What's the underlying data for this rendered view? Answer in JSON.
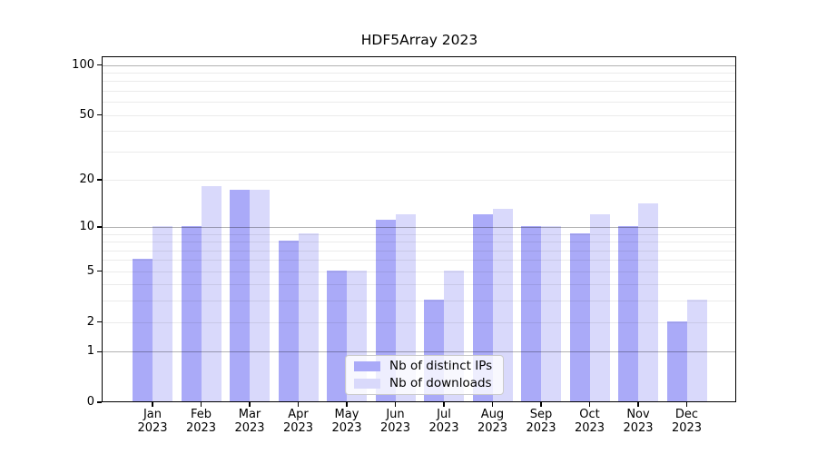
{
  "chart_data": {
    "type": "bar",
    "title": "HDF5Array 2023",
    "categories": [
      "Jan",
      "Feb",
      "Mar",
      "Apr",
      "May",
      "Jun",
      "Jul",
      "Aug",
      "Sep",
      "Oct",
      "Nov",
      "Dec"
    ],
    "year_label": "2023",
    "series": [
      {
        "name": "Nb of distinct IPs",
        "color": "#aaaaf8",
        "values": [
          6,
          10,
          17,
          8,
          5,
          11,
          3,
          12,
          10,
          9,
          10,
          2
        ]
      },
      {
        "name": "Nb of downloads",
        "color": "#d9d9fb",
        "values": [
          10,
          18,
          17,
          9,
          5,
          12,
          5,
          13,
          10,
          12,
          14,
          3
        ]
      }
    ],
    "xlabel": "",
    "ylabel": "",
    "yscale": "log1p",
    "ylim": [
      0,
      110
    ],
    "y_ticks": [
      100,
      50,
      20,
      10,
      5,
      2,
      1,
      0
    ],
    "grid_major_values": [
      1,
      10,
      100
    ],
    "grid_minor_values": [
      2,
      3,
      4,
      5,
      6,
      7,
      8,
      9,
      20,
      30,
      40,
      50,
      60,
      70,
      80,
      90
    ],
    "grid_on": true,
    "legend_position": "lower center inside plot"
  },
  "colors": {
    "background": "#ffffff",
    "axis": "#000000",
    "grid_major": "#b3b3b3",
    "grid_minor": "#ebebeb",
    "bar_distinct_ips": "#aaaaf8",
    "bar_downloads": "#d9d9fb",
    "legend_border": "#cbcbcb",
    "text": "#000000"
  }
}
